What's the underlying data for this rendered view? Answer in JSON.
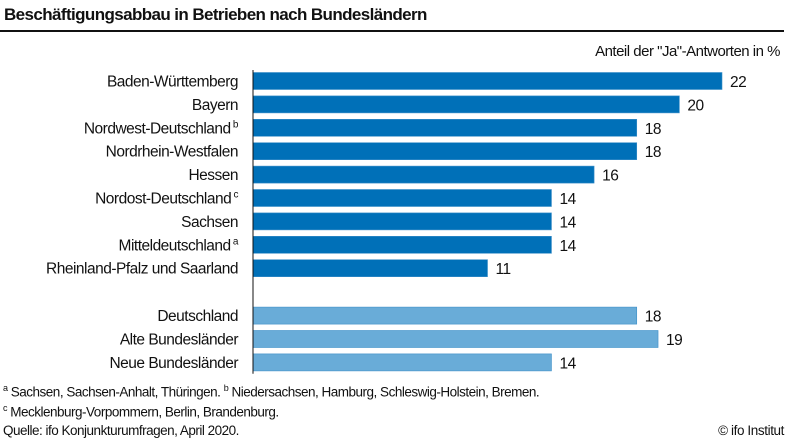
{
  "chart_data": {
    "type": "bar",
    "orientation": "horizontal",
    "title": "Beschäftigungsabbau in Betrieben nach Bundesländern",
    "unit_label": "Anteil der \"Ja\"-Antworten in %",
    "xlim": [
      0,
      22
    ],
    "grid": false,
    "groups": [
      {
        "color": "#0070b8",
        "categories": [
          {
            "label": "Baden-Württemberg",
            "note": "",
            "value": 22
          },
          {
            "label": "Bayern",
            "note": "",
            "value": 20
          },
          {
            "label": "Nordwest-Deutschland",
            "note": "b",
            "value": 18
          },
          {
            "label": "Nordrhein-Westfalen",
            "note": "",
            "value": 18
          },
          {
            "label": "Hessen",
            "note": "",
            "value": 16
          },
          {
            "label": "Nordost-Deutschland",
            "note": "c",
            "value": 14
          },
          {
            "label": "Sachsen",
            "note": "",
            "value": 14
          },
          {
            "label": "Mitteldeutschland",
            "note": "a",
            "value": 14
          },
          {
            "label": "Rheinland-Pfalz und Saarland",
            "note": "",
            "value": 11
          }
        ]
      },
      {
        "color": "#69acd8",
        "categories": [
          {
            "label": "Deutschland",
            "note": "",
            "value": 18
          },
          {
            "label": "Alte Bundesländer",
            "note": "",
            "value": 19
          },
          {
            "label": "Neue Bundesländer",
            "note": "",
            "value": 14
          }
        ]
      }
    ]
  },
  "footnotes": {
    "a_mark": "a",
    "a_text": "Sachsen, Sachsen-Anhalt, Thüringen.",
    "b_mark": "b",
    "b_text": "Niedersachsen, Hamburg, Schleswig-Holstein, Bremen.",
    "c_mark": "c",
    "c_text": "Mecklenburg-Vorpommern, Berlin, Brandenburg.",
    "source": "Quelle: ifo Konjunkturumfragen, April 2020.",
    "copyright": "© ifo Institut"
  }
}
